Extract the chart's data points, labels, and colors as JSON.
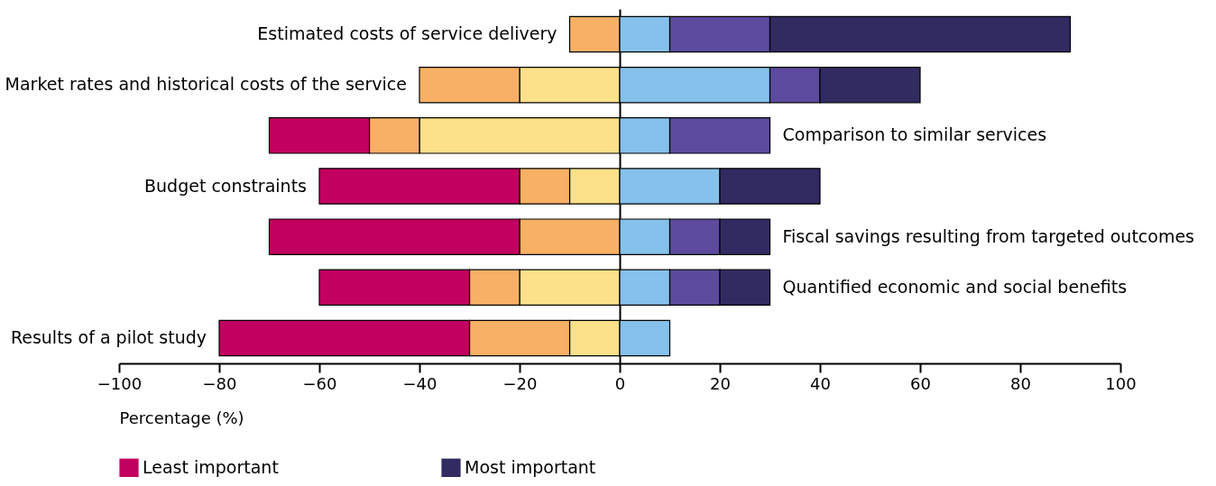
{
  "chart_data": {
    "type": "bar",
    "orientation": "horizontal",
    "stacked": true,
    "xlabel": "Percentage (%)",
    "categories": [
      "Estimated costs of service delivery",
      "Market rates and historical costs of the service",
      "Comparison to similar services",
      "Budget constraints",
      "Fiscal savings resulting from targeted outcomes",
      "Quantified economic and social benefits",
      "Results of a pilot study"
    ],
    "series": [
      {
        "color": "#fde08a",
        "values": [
          null,
          -20,
          -40,
          -10,
          null,
          -20,
          -10
        ]
      },
      {
        "color": "#f7b064",
        "values": [
          -10,
          -20,
          -10,
          -10,
          -20,
          -10,
          -20
        ]
      },
      {
        "name": "Least important",
        "color": "#c2005f",
        "values": [
          null,
          null,
          -20,
          -40,
          -50,
          -30,
          -50
        ]
      },
      {
        "color": "#85c1ea",
        "values": [
          10,
          30,
          10,
          20,
          10,
          10,
          10
        ]
      },
      {
        "color": "#5b4a9e",
        "values": [
          20,
          10,
          20,
          null,
          10,
          10,
          null
        ]
      },
      {
        "name": "Most important",
        "color": "#312b62",
        "values": [
          60,
          20,
          null,
          20,
          10,
          10,
          null
        ]
      }
    ],
    "xlim": [
      -100,
      100
    ],
    "xticks": [
      -100,
      -80,
      -60,
      -40,
      -20,
      0,
      20,
      40,
      60,
      80,
      100
    ],
    "legend": "bottom"
  }
}
